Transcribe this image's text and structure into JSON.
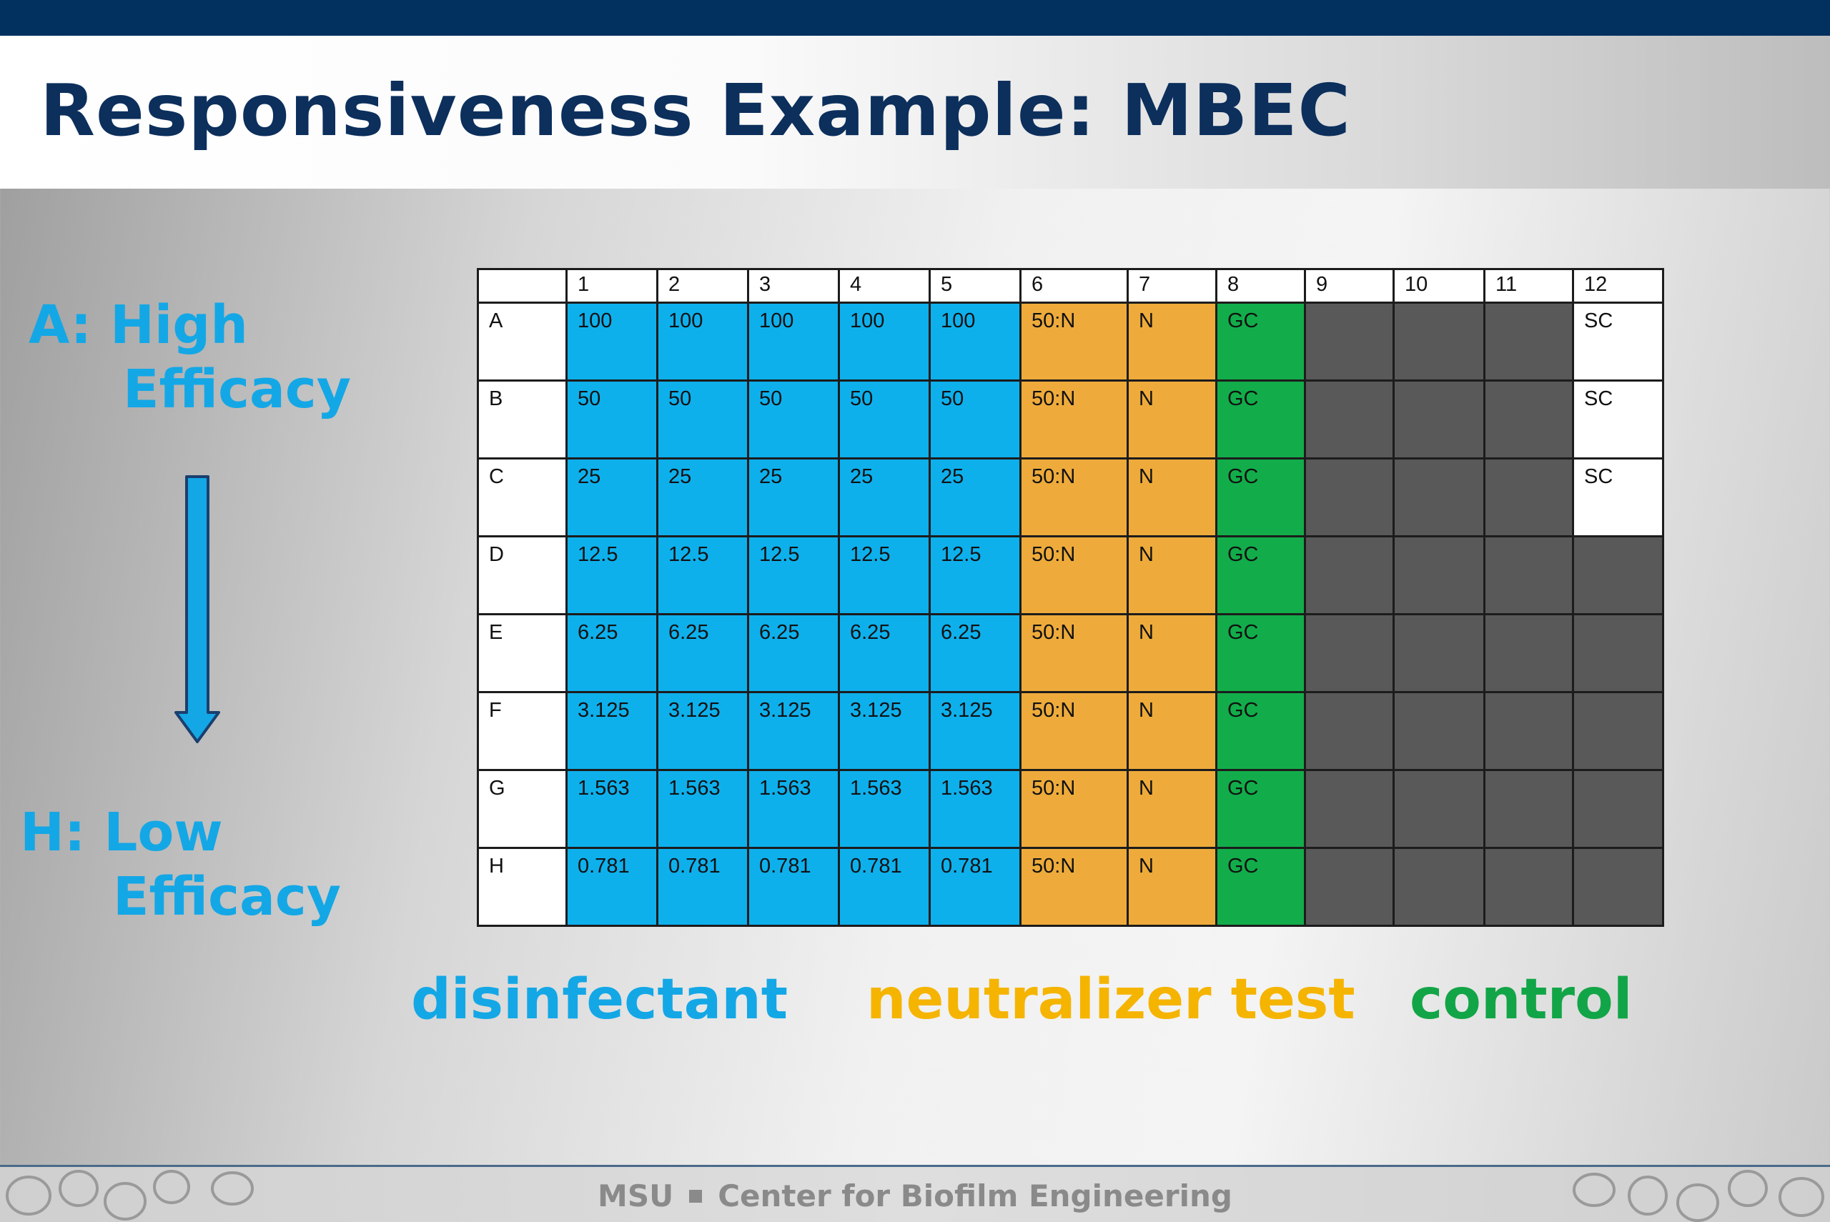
{
  "title": "Responsiveness Example: MBEC",
  "side": {
    "top_line1": "A: High",
    "top_line2": "Efficacy",
    "bottom_line1": "H: Low",
    "bottom_line2": "Efficacy"
  },
  "plate": {
    "columns": [
      "",
      "1",
      "2",
      "3",
      "4",
      "5",
      "6",
      "7",
      "8",
      "9",
      "10",
      "11",
      "12"
    ],
    "rows": [
      {
        "label": "A",
        "cells": [
          "100",
          "100",
          "100",
          "100",
          "100",
          "50:N",
          "N",
          "GC",
          "",
          "",
          "",
          "SC"
        ]
      },
      {
        "label": "B",
        "cells": [
          "50",
          "50",
          "50",
          "50",
          "50",
          "50:N",
          "N",
          "GC",
          "",
          "",
          "",
          "SC"
        ]
      },
      {
        "label": "C",
        "cells": [
          "25",
          "25",
          "25",
          "25",
          "25",
          "50:N",
          "N",
          "GC",
          "",
          "",
          "",
          "SC"
        ]
      },
      {
        "label": "D",
        "cells": [
          "12.5",
          "12.5",
          "12.5",
          "12.5",
          "12.5",
          "50:N",
          "N",
          "GC",
          "",
          "",
          "",
          ""
        ]
      },
      {
        "label": "E",
        "cells": [
          "6.25",
          "6.25",
          "6.25",
          "6.25",
          "6.25",
          "50:N",
          "N",
          "GC",
          "",
          "",
          "",
          ""
        ]
      },
      {
        "label": "F",
        "cells": [
          "3.125",
          "3.125",
          "3.125",
          "3.125",
          "3.125",
          "50:N",
          "N",
          "GC",
          "",
          "",
          "",
          ""
        ]
      },
      {
        "label": "G",
        "cells": [
          "1.563",
          "1.563",
          "1.563",
          "1.563",
          "1.563",
          "50:N",
          "N",
          "GC",
          "",
          "",
          "",
          ""
        ]
      },
      {
        "label": "H",
        "cells": [
          "0.781",
          "0.781",
          "0.781",
          "0.781",
          "0.781",
          "50:N",
          "N",
          "GC",
          "",
          "",
          "",
          ""
        ]
      }
    ]
  },
  "legend": {
    "disinfectant": "disinfectant",
    "neutralizer": "neutralizer test",
    "control": "control"
  },
  "footer": {
    "left": "MSU",
    "right": "Center for Biofilm Engineering"
  },
  "colors": {
    "disinfectant": "#0eb0ec",
    "neutralizer": "#eeab3b",
    "control": "#12ad4a",
    "empty": "#595959",
    "title": "#0c2f5c",
    "top_bar": "#02305f",
    "side_text": "#14a7e6",
    "legend_neutralizer": "#f5b400",
    "legend_control": "#12a547"
  }
}
